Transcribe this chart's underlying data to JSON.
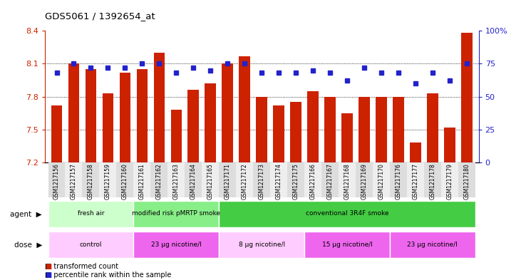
{
  "title": "GDS5061 / 1392654_at",
  "samples": [
    "GSM1217156",
    "GSM1217157",
    "GSM1217158",
    "GSM1217159",
    "GSM1217160",
    "GSM1217161",
    "GSM1217162",
    "GSM1217163",
    "GSM1217164",
    "GSM1217165",
    "GSM1217171",
    "GSM1217172",
    "GSM1217173",
    "GSM1217174",
    "GSM1217175",
    "GSM1217166",
    "GSM1217167",
    "GSM1217168",
    "GSM1217169",
    "GSM1217170",
    "GSM1217176",
    "GSM1217177",
    "GSM1217178",
    "GSM1217179",
    "GSM1217180"
  ],
  "bar_values": [
    7.72,
    8.1,
    8.05,
    7.83,
    8.02,
    8.05,
    8.2,
    7.68,
    7.86,
    7.92,
    8.1,
    8.17,
    7.8,
    7.72,
    7.75,
    7.85,
    7.8,
    7.65,
    7.8,
    7.8,
    7.8,
    7.38,
    7.83,
    7.52,
    8.38
  ],
  "percentile_values": [
    68,
    75,
    72,
    72,
    72,
    75,
    75,
    68,
    72,
    70,
    75,
    75,
    68,
    68,
    68,
    70,
    68,
    62,
    72,
    68,
    68,
    60,
    68,
    62,
    75
  ],
  "ylim_left": [
    7.2,
    8.4
  ],
  "ylim_right": [
    0,
    100
  ],
  "yticks_left": [
    7.2,
    7.5,
    7.8,
    8.1,
    8.4
  ],
  "yticks_right": [
    0,
    25,
    50,
    75,
    100
  ],
  "bar_color": "#cc2200",
  "dot_color": "#2222cc",
  "agent_groups": [
    {
      "label": "fresh air",
      "start": 0,
      "end": 5,
      "color": "#ccffcc"
    },
    {
      "label": "modified risk pMRTP smoke",
      "start": 5,
      "end": 10,
      "color": "#88ee88"
    },
    {
      "label": "conventional 3R4F smoke",
      "start": 10,
      "end": 25,
      "color": "#44cc44"
    }
  ],
  "dose_groups": [
    {
      "label": "control",
      "start": 0,
      "end": 5,
      "color": "#ffccff"
    },
    {
      "label": "23 µg nicotine/l",
      "start": 5,
      "end": 10,
      "color": "#ee66ee"
    },
    {
      "label": "8 µg nicotine/l",
      "start": 10,
      "end": 15,
      "color": "#ffccff"
    },
    {
      "label": "15 µg nicotine/l",
      "start": 15,
      "end": 20,
      "color": "#ee66ee"
    },
    {
      "label": "23 µg nicotine/l",
      "start": 20,
      "end": 25,
      "color": "#ee66ee"
    }
  ],
  "background_color": "#ffffff"
}
